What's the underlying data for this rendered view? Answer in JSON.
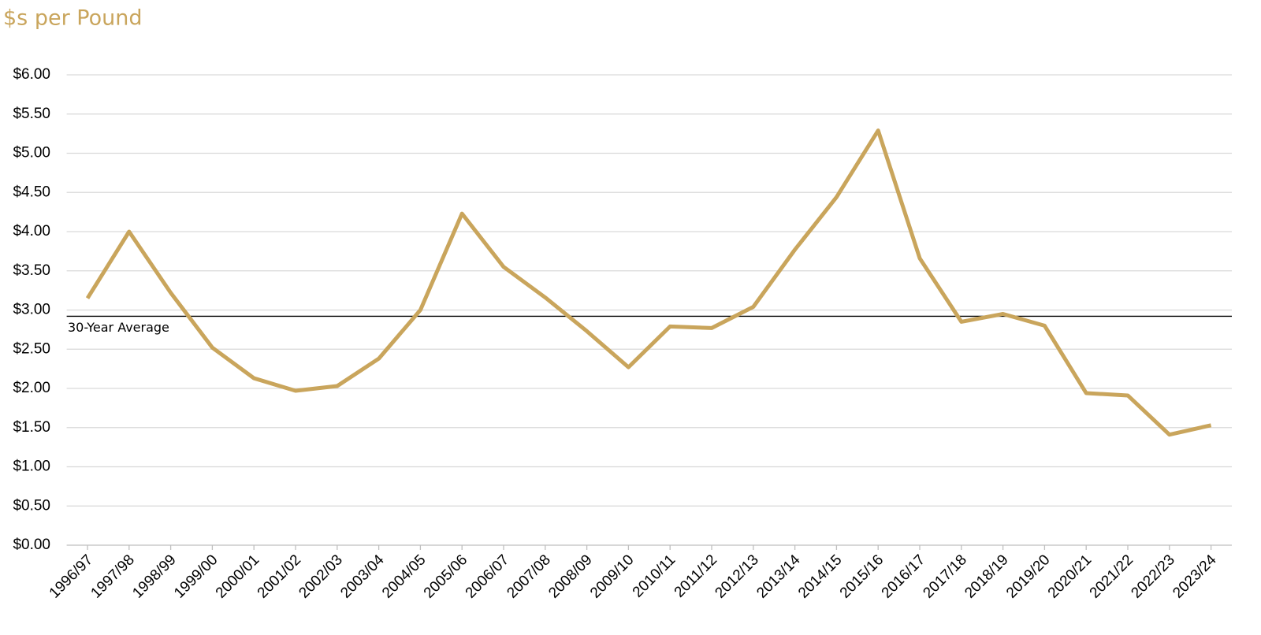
{
  "chart_data": {
    "type": "line",
    "title": "$s per Pound",
    "categories": [
      "1996/97",
      "1997/98",
      "1998/99",
      "1999/00",
      "2000/01",
      "2001/02",
      "2002/03",
      "2003/04",
      "2004/05",
      "2005/06",
      "2006/07",
      "2007/08",
      "2008/09",
      "2009/10",
      "2010/11",
      "2011/12",
      "2012/13",
      "2013/14",
      "2014/15",
      "2015/16",
      "2016/17",
      "2017/18",
      "2018/19",
      "2019/20",
      "2020/21",
      "2021/22",
      "2022/23",
      "2023/24"
    ],
    "series": [
      {
        "name": "$s per Pound",
        "color": "#c9a55c",
        "values": [
          3.15,
          4.0,
          3.22,
          2.52,
          2.13,
          1.97,
          2.03,
          2.38,
          3.0,
          4.23,
          3.55,
          3.16,
          2.73,
          2.27,
          2.79,
          2.77,
          3.04,
          3.77,
          4.44,
          5.29,
          3.66,
          2.85,
          2.95,
          2.8,
          1.94,
          1.91,
          1.41,
          1.53
        ]
      }
    ],
    "reference_line": {
      "label": "30-Year Average",
      "value": 2.92,
      "color": "#000000"
    },
    "ylim": [
      0,
      6
    ],
    "yticks": [
      {
        "value": 0,
        "label": "$0.00"
      },
      {
        "value": 0.5,
        "label": "$0.50"
      },
      {
        "value": 1,
        "label": "$1.00"
      },
      {
        "value": 1.5,
        "label": "$1.50"
      },
      {
        "value": 2,
        "label": "$2.00"
      },
      {
        "value": 2.5,
        "label": "$2.50"
      },
      {
        "value": 3,
        "label": "$3.00"
      },
      {
        "value": 3.5,
        "label": "$3.50"
      },
      {
        "value": 4,
        "label": "$4.00"
      },
      {
        "value": 4.5,
        "label": "$4.50"
      },
      {
        "value": 5,
        "label": "$5.00"
      },
      {
        "value": 5.5,
        "label": "$5.50"
      },
      {
        "value": 6,
        "label": "$6.00"
      }
    ],
    "grid": true
  }
}
